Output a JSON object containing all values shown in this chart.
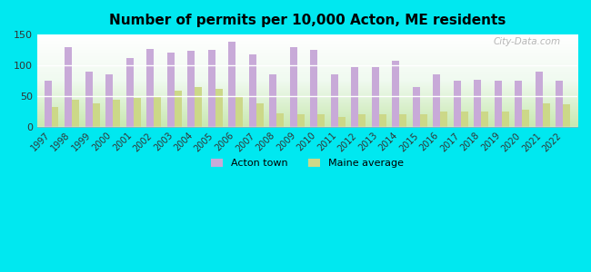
{
  "title": "Number of permits per 10,000 Acton, ME residents",
  "years": [
    1997,
    1998,
    1999,
    2000,
    2001,
    2002,
    2003,
    2004,
    2005,
    2006,
    2007,
    2008,
    2009,
    2010,
    2011,
    2012,
    2013,
    2014,
    2015,
    2016,
    2017,
    2018,
    2019,
    2020,
    2021,
    2022
  ],
  "acton": [
    75,
    130,
    90,
    85,
    112,
    127,
    120,
    124,
    125,
    138,
    117,
    85,
    130,
    125,
    85,
    97,
    97,
    107,
    65,
    85,
    75,
    76,
    75,
    75,
    90,
    75
  ],
  "maine": [
    32,
    43,
    38,
    43,
    46,
    50,
    58,
    64,
    62,
    50,
    37,
    22,
    20,
    20,
    16,
    20,
    20,
    20,
    20,
    25,
    25,
    25,
    25,
    28,
    37,
    36
  ],
  "acton_color": "#c8aad8",
  "maine_color": "#ccd888",
  "background_outer": "#00e8f0",
  "ylim": [
    0,
    150
  ],
  "yticks": [
    0,
    50,
    100,
    150
  ],
  "bar_width": 0.35,
  "legend_labels": [
    "Acton town",
    "Maine average"
  ],
  "watermark": "City-Data.com"
}
